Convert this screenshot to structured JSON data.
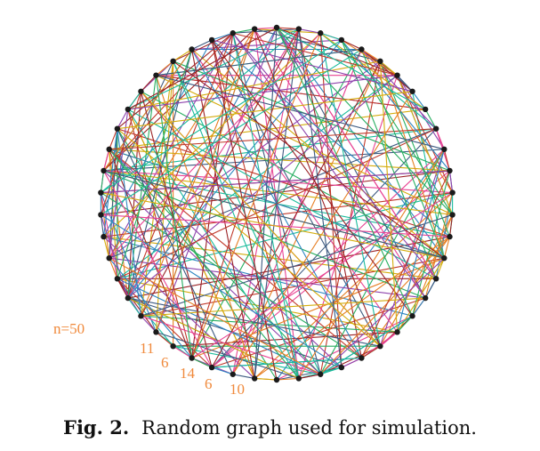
{
  "figure": {
    "caption_label": "Fig. 2.",
    "caption_text": "Random graph used for simulation."
  },
  "graph": {
    "node_count": 50,
    "node_color": "#1a1a1a",
    "edge_colors": [
      "#c0392b",
      "#2e86c1",
      "#e67e22",
      "#8e44ad",
      "#27ae60",
      "#d4ac0d",
      "#1abc9c",
      "#e84393",
      "#3d5a80",
      "#9b2226"
    ],
    "annotations": {
      "n_label": "n=50",
      "degree_labels": [
        "11",
        "6",
        "14",
        "6",
        "10"
      ]
    },
    "annotation_color": "#f08a3c"
  }
}
